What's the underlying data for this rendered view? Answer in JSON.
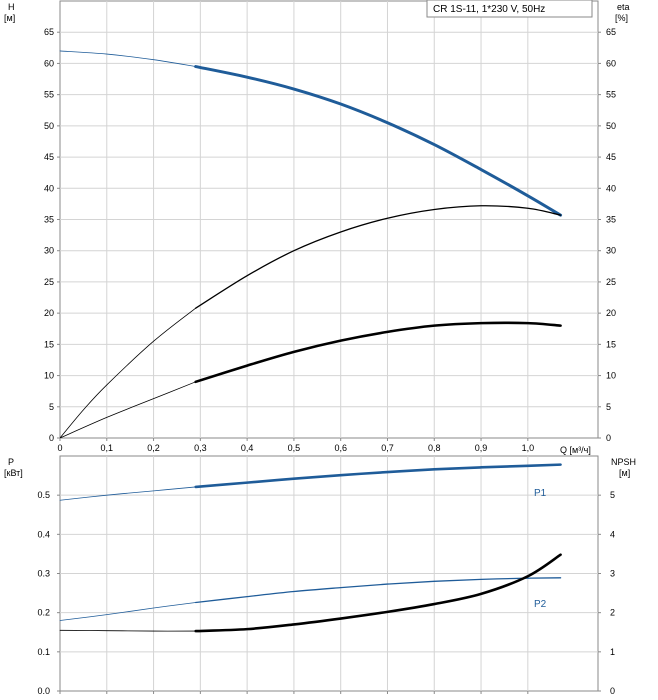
{
  "title": "CR 1S-11, 1*230 V, 50Hz",
  "colors": {
    "blue": "#1f5c99",
    "black": "#000000",
    "grey": "#8a8a8a"
  },
  "chart_data": [
    {
      "type": "line",
      "xlabel": "Q [м³/ч]",
      "ylabel_left": [
        "H",
        "[м]"
      ],
      "ylabel_right": [
        "eta",
        "[%]"
      ],
      "x_ticks": [
        "0",
        "0,1",
        "0,2",
        "0,3",
        "0,4",
        "0,5",
        "0,6",
        "0,7",
        "0,8",
        "0,9",
        "1,0"
      ],
      "y_ticks": [
        "0",
        "5",
        "10",
        "15",
        "20",
        "25",
        "30",
        "35",
        "40",
        "45",
        "50",
        "55",
        "60",
        "65"
      ],
      "xlim": [
        0,
        1.15
      ],
      "ylim": [
        0,
        70
      ],
      "grid": true,
      "series": [
        {
          "id": "H",
          "color": "#1f5c99",
          "thick": 3,
          "thin_to": 0.29,
          "x": [
            0,
            0.1,
            0.2,
            0.29,
            0.4,
            0.5,
            0.6,
            0.7,
            0.8,
            0.9,
            1.0,
            1.07
          ],
          "y": [
            62,
            61.5,
            60.6,
            59.5,
            57.8,
            55.9,
            53.5,
            50.5,
            47.0,
            43.0,
            38.8,
            35.7
          ]
        },
        {
          "id": "eta",
          "color": "#000000",
          "thick": 1.3,
          "thin_to": 0.29,
          "x": [
            0,
            0.05,
            0.1,
            0.2,
            0.29,
            0.4,
            0.5,
            0.6,
            0.7,
            0.8,
            0.9,
            1.0,
            1.07
          ],
          "y": [
            0,
            4.5,
            8.5,
            15.5,
            20.8,
            26.0,
            30.0,
            33.0,
            35.2,
            36.6,
            37.2,
            36.8,
            35.7
          ]
        },
        {
          "id": "NPSH_upper",
          "color": "#000000",
          "thick": 2.6,
          "thin_to": 0.29,
          "x": [
            0,
            0.1,
            0.2,
            0.29,
            0.4,
            0.5,
            0.6,
            0.7,
            0.8,
            0.9,
            1.0,
            1.07
          ],
          "y": [
            0,
            3.3,
            6.3,
            9.0,
            11.6,
            13.8,
            15.6,
            17.0,
            18.0,
            18.4,
            18.4,
            18.0
          ]
        }
      ]
    },
    {
      "type": "line",
      "ylabel_left": [
        "P",
        "[кВт]"
      ],
      "ylabel_right": [
        "NPSH",
        "[м]"
      ],
      "x_ticks": [],
      "y_ticks_left": [
        "0.0",
        "0.1",
        "0.2",
        "0.3",
        "0.4",
        "0.5"
      ],
      "y_ticks_right": [
        "0",
        "1",
        "2",
        "3",
        "4",
        "5"
      ],
      "xlim": [
        0,
        1.15
      ],
      "ylim": [
        0,
        0.6
      ],
      "grid": true,
      "series": [
        {
          "id": "P1",
          "name": "P1",
          "color": "#1f5c99",
          "thick": 2.6,
          "thin_to": 0.29,
          "x": [
            0,
            0.1,
            0.2,
            0.29,
            0.4,
            0.5,
            0.6,
            0.7,
            0.8,
            0.9,
            1.0,
            1.07
          ],
          "y": [
            0.487,
            0.5,
            0.511,
            0.521,
            0.532,
            0.542,
            0.551,
            0.559,
            0.566,
            0.571,
            0.575,
            0.578
          ]
        },
        {
          "id": "P2",
          "name": "P2",
          "color": "#1f5c99",
          "thick": 1.3,
          "thin_to": 0.29,
          "x": [
            0,
            0.1,
            0.2,
            0.29,
            0.4,
            0.5,
            0.6,
            0.7,
            0.8,
            0.9,
            1.0,
            1.07
          ],
          "y": [
            0.18,
            0.195,
            0.212,
            0.226,
            0.241,
            0.254,
            0.264,
            0.273,
            0.28,
            0.285,
            0.288,
            0.289
          ]
        },
        {
          "id": "NPSH",
          "color": "#000000",
          "thick": 2.6,
          "thin_to": 0.29,
          "x": [
            0,
            0.1,
            0.2,
            0.29,
            0.4,
            0.5,
            0.6,
            0.7,
            0.8,
            0.9,
            1.0,
            1.07
          ],
          "y": [
            0.155,
            0.154,
            0.153,
            0.153,
            0.158,
            0.17,
            0.185,
            0.202,
            0.222,
            0.248,
            0.293,
            0.348
          ]
        }
      ]
    }
  ]
}
